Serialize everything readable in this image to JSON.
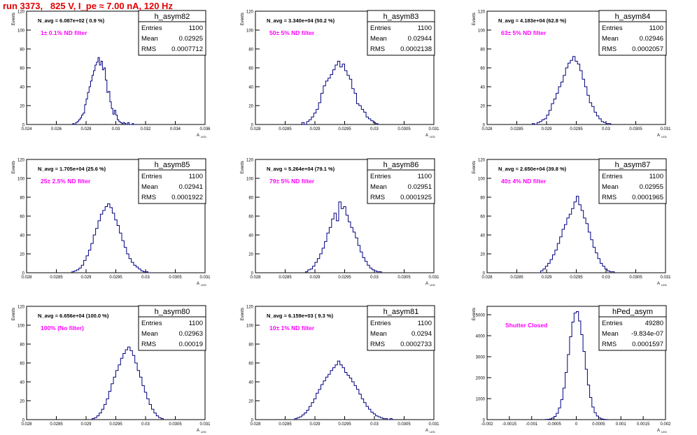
{
  "title": "run 3373,   825 V, I_pe ≈ 7.00 nA, 120 Hz",
  "axis_labels": {
    "y": "Events",
    "x": "A",
    "x_sub": "LED"
  },
  "stats_labels": {
    "entries": "Entries",
    "mean": "Mean",
    "rms": "RMS"
  },
  "colors": {
    "hist": "#000080",
    "note": "#ff00ff",
    "title": "#e00000"
  },
  "chart_data": [
    {
      "type": "histogram",
      "name": "h_asym82",
      "n_avg": "N_avg = 6.087e+02 ( 0.9 %)",
      "note": "1± 0.1% ND filter",
      "entries": "1100",
      "mean": "0.02925",
      "rms": "0.0007712",
      "xlim": [
        0.024,
        0.036
      ],
      "ylim": [
        0,
        120
      ],
      "xticks": [
        "0.024",
        "0.026",
        "0.028",
        "0.03",
        "0.032",
        "0.034",
        "0.036"
      ],
      "yticks": [
        "0",
        "20",
        "40",
        "60",
        "80",
        "100",
        "120"
      ],
      "edges": [
        0.0271,
        0.0272,
        0.0273,
        0.0274,
        0.0275,
        0.0276,
        0.0277,
        0.0278,
        0.0279,
        0.028,
        0.0281,
        0.0282,
        0.0283,
        0.0284,
        0.0285,
        0.0286,
        0.0287,
        0.0288,
        0.0289,
        0.029,
        0.0291,
        0.0292,
        0.0293,
        0.0294,
        0.0295,
        0.0296,
        0.0297,
        0.0298,
        0.0299,
        0.03,
        0.0301,
        0.0302,
        0.0303,
        0.0304,
        0.0305,
        0.0306,
        0.0307,
        0.0308,
        0.0309,
        0.031,
        0.0311,
        0.0312,
        0.0313
      ],
      "counts": [
        1,
        0,
        2,
        3,
        5,
        7,
        10,
        12,
        21,
        27,
        34,
        40,
        46,
        52,
        57,
        63,
        66,
        71,
        63,
        67,
        58,
        60,
        47,
        34,
        35,
        24,
        17,
        11,
        15,
        10,
        5,
        3,
        2,
        1,
        2,
        1,
        0,
        2,
        0,
        0,
        1,
        0
      ]
    },
    {
      "type": "histogram",
      "name": "h_asym83",
      "n_avg": "N_avg = 3.340e+04 (50.2 %)",
      "note": "50± 5% ND filter",
      "entries": "1100",
      "mean": "0.02944",
      "rms": "0.0002138",
      "xlim": [
        0.028,
        0.031
      ],
      "ylim": [
        0,
        120
      ],
      "xticks": [
        "0.028",
        "0.0285",
        "0.029",
        "0.0295",
        "0.03",
        "0.0305",
        "0.031"
      ],
      "yticks": [
        "0",
        "20",
        "40",
        "60",
        "80",
        "100",
        "120"
      ],
      "edges": [
        0.02878,
        0.02882,
        0.02886,
        0.0289,
        0.02894,
        0.02898,
        0.02902,
        0.02906,
        0.0291,
        0.02914,
        0.02918,
        0.02922,
        0.02926,
        0.0293,
        0.02934,
        0.02938,
        0.02942,
        0.02946,
        0.0295,
        0.02954,
        0.02958,
        0.02962,
        0.02966,
        0.0297,
        0.02974,
        0.02978,
        0.02982,
        0.02986,
        0.0299,
        0.02994,
        0.02998,
        0.03002,
        0.03006
      ],
      "counts": [
        2,
        0,
        3,
        5,
        8,
        12,
        16,
        23,
        33,
        41,
        46,
        49,
        53,
        58,
        63,
        67,
        61,
        64,
        57,
        52,
        48,
        38,
        33,
        22,
        20,
        16,
        13,
        8,
        6,
        4,
        2,
        1
      ]
    },
    {
      "type": "histogram",
      "name": "h_asym84",
      "n_avg": "N_avg = 4.183e+04 (62.8 %)",
      "note": "63± 5% ND filter",
      "entries": "1100",
      "mean": "0.02946",
      "rms": "0.0002057",
      "xlim": [
        0.028,
        0.031
      ],
      "ylim": [
        0,
        120
      ],
      "xticks": [
        "0.028",
        "0.0285",
        "0.029",
        "0.0295",
        "0.03",
        "0.0305",
        "0.031"
      ],
      "yticks": [
        "0",
        "20",
        "40",
        "60",
        "80",
        "100",
        "120"
      ],
      "edges": [
        0.02876,
        0.0288,
        0.02884,
        0.02888,
        0.02892,
        0.02896,
        0.029,
        0.02904,
        0.02908,
        0.02912,
        0.02916,
        0.0292,
        0.02924,
        0.02928,
        0.02932,
        0.02936,
        0.0294,
        0.02944,
        0.02948,
        0.02952,
        0.02956,
        0.0296,
        0.02964,
        0.02968,
        0.02972,
        0.02976,
        0.0298,
        0.02984,
        0.02988,
        0.02992,
        0.02996,
        0.03,
        0.03004,
        0.03008
      ],
      "counts": [
        1,
        0,
        2,
        3,
        5,
        6,
        10,
        15,
        22,
        27,
        33,
        40,
        45,
        52,
        60,
        65,
        68,
        72,
        67,
        64,
        57,
        48,
        40,
        31,
        23,
        19,
        13,
        9,
        6,
        3,
        2,
        1,
        1
      ]
    },
    {
      "type": "histogram",
      "name": "h_asym85",
      "n_avg": "N_avg = 1.705e+04 (25.6 %)",
      "note": "25± 2.5% ND filter",
      "entries": "1100",
      "mean": "0.02941",
      "rms": "0.0001922",
      "xlim": [
        0.028,
        0.031
      ],
      "ylim": [
        0,
        120
      ],
      "xticks": [
        "0.028",
        "0.0285",
        "0.029",
        "0.0295",
        "0.03",
        "0.0305",
        "0.031"
      ],
      "yticks": [
        "0",
        "20",
        "40",
        "60",
        "80",
        "100",
        "120"
      ],
      "edges": [
        0.02876,
        0.0288,
        0.02884,
        0.02888,
        0.02892,
        0.02896,
        0.029,
        0.02904,
        0.02908,
        0.02912,
        0.02916,
        0.0292,
        0.02924,
        0.02928,
        0.02932,
        0.02936,
        0.0294,
        0.02944,
        0.02948,
        0.02952,
        0.02956,
        0.0296,
        0.02964,
        0.02968,
        0.02972,
        0.02976,
        0.0298,
        0.02984,
        0.02988,
        0.02992,
        0.02996,
        0.03,
        0.03004,
        0.03008
      ],
      "counts": [
        1,
        2,
        3,
        5,
        8,
        13,
        18,
        24,
        31,
        40,
        47,
        55,
        62,
        66,
        70,
        73,
        69,
        63,
        56,
        50,
        42,
        34,
        27,
        20,
        15,
        11,
        8,
        6,
        4,
        2,
        1,
        1,
        0
      ]
    },
    {
      "type": "histogram",
      "name": "h_asym86",
      "n_avg": "N_avg = 5.264e+04 (79.1 %)",
      "note": "79± 5% ND filter",
      "entries": "1100",
      "mean": "0.02951",
      "rms": "0.0001925",
      "xlim": [
        0.028,
        0.031
      ],
      "ylim": [
        0,
        120
      ],
      "xticks": [
        "0.028",
        "0.0285",
        "0.029",
        "0.0295",
        "0.03",
        "0.0305",
        "0.031"
      ],
      "yticks": [
        "0",
        "20",
        "40",
        "60",
        "80",
        "100",
        "120"
      ],
      "edges": [
        0.02884,
        0.02888,
        0.02892,
        0.02896,
        0.029,
        0.02904,
        0.02908,
        0.02912,
        0.02916,
        0.0292,
        0.02924,
        0.02928,
        0.02932,
        0.02936,
        0.0294,
        0.02944,
        0.02948,
        0.02952,
        0.02956,
        0.0296,
        0.02964,
        0.02968,
        0.02972,
        0.02976,
        0.0298,
        0.02984,
        0.02988,
        0.02992,
        0.02996,
        0.03,
        0.03004,
        0.03008,
        0.03012
      ],
      "counts": [
        1,
        3,
        4,
        7,
        11,
        15,
        20,
        26,
        33,
        42,
        48,
        57,
        63,
        55,
        75,
        68,
        70,
        61,
        54,
        48,
        43,
        37,
        29,
        22,
        16,
        12,
        8,
        5,
        3,
        2,
        1,
        1
      ]
    },
    {
      "type": "histogram",
      "name": "h_asym87",
      "n_avg": "N_avg = 2.650e+04 (39.8 %)",
      "note": "40± 4% ND filter",
      "entries": "1100",
      "mean": "0.02955",
      "rms": "0.0001965",
      "xlim": [
        0.028,
        0.031
      ],
      "ylim": [
        0,
        120
      ],
      "xticks": [
        "0.028",
        "0.0285",
        "0.029",
        "0.0295",
        "0.03",
        "0.0305",
        "0.031"
      ],
      "yticks": [
        "0",
        "20",
        "40",
        "60",
        "80",
        "100",
        "120"
      ],
      "edges": [
        0.0289,
        0.02894,
        0.02898,
        0.02902,
        0.02906,
        0.0291,
        0.02914,
        0.02918,
        0.02922,
        0.02926,
        0.0293,
        0.02934,
        0.02938,
        0.02942,
        0.02946,
        0.0295,
        0.02954,
        0.02958,
        0.02962,
        0.02966,
        0.0297,
        0.02974,
        0.02978,
        0.02982,
        0.02986,
        0.0299,
        0.02994,
        0.02998,
        0.03002,
        0.03006,
        0.0301,
        0.03014
      ],
      "counts": [
        2,
        4,
        7,
        10,
        14,
        19,
        24,
        31,
        38,
        46,
        51,
        58,
        62,
        68,
        75,
        81,
        72,
        66,
        58,
        52,
        43,
        35,
        27,
        21,
        15,
        10,
        7,
        4,
        2,
        1,
        1
      ]
    },
    {
      "type": "histogram",
      "name": "h_asym80",
      "n_avg": "N_avg = 6.656e+04 (100.0 %)",
      "note": "100% (No filter)",
      "entries": "1100",
      "mean": "0.02963",
      "rms": "0.00019",
      "xlim": [
        0.028,
        0.031
      ],
      "ylim": [
        0,
        120
      ],
      "xticks": [
        "0.028",
        "0.0285",
        "0.029",
        "0.0295",
        "0.03",
        "0.0305",
        "0.031"
      ],
      "yticks": [
        "0",
        "20",
        "40",
        "60",
        "80",
        "100",
        "120"
      ],
      "edges": [
        0.0291,
        0.02914,
        0.02918,
        0.02922,
        0.02926,
        0.0293,
        0.02934,
        0.02938,
        0.02942,
        0.02946,
        0.0295,
        0.02954,
        0.02958,
        0.02962,
        0.02966,
        0.0297,
        0.02974,
        0.02978,
        0.02982,
        0.02986,
        0.0299,
        0.02994,
        0.02998,
        0.03002,
        0.03006,
        0.0301,
        0.03014,
        0.03018,
        0.03022,
        0.03026,
        0.0303
      ],
      "counts": [
        1,
        2,
        4,
        7,
        11,
        16,
        22,
        30,
        38,
        45,
        52,
        58,
        65,
        70,
        74,
        77,
        73,
        68,
        60,
        52,
        45,
        36,
        29,
        22,
        16,
        11,
        7,
        4,
        2,
        1
      ]
    },
    {
      "type": "histogram",
      "name": "h_asym81",
      "n_avg": "N_avg = 6.159e+03 ( 9.3 %)",
      "note": "10± 1% ND filter",
      "entries": "1100",
      "mean": "0.0294",
      "rms": "0.0002733",
      "xlim": [
        0.028,
        0.031
      ],
      "ylim": [
        0,
        120
      ],
      "xticks": [
        "0.028",
        "0.0285",
        "0.029",
        "0.0295",
        "0.03",
        "0.0305",
        "0.031"
      ],
      "yticks": [
        "0",
        "20",
        "40",
        "60",
        "80",
        "100",
        "120"
      ],
      "edges": [
        0.02866,
        0.0287,
        0.02874,
        0.02878,
        0.02882,
        0.02886,
        0.0289,
        0.02894,
        0.02898,
        0.02902,
        0.02906,
        0.0291,
        0.02914,
        0.02918,
        0.02922,
        0.02926,
        0.0293,
        0.02934,
        0.02938,
        0.02942,
        0.02946,
        0.0295,
        0.02954,
        0.02958,
        0.02962,
        0.02966,
        0.0297,
        0.02974,
        0.02978,
        0.02982,
        0.02986,
        0.0299,
        0.02994,
        0.02998,
        0.03002,
        0.03006,
        0.0301,
        0.03014,
        0.03018,
        0.03022,
        0.03026,
        0.0303
      ],
      "counts": [
        1,
        2,
        3,
        5,
        7,
        10,
        14,
        18,
        22,
        28,
        32,
        37,
        41,
        45,
        48,
        52,
        55,
        58,
        62,
        58,
        55,
        50,
        47,
        44,
        40,
        36,
        32,
        27,
        22,
        18,
        14,
        11,
        8,
        6,
        4,
        3,
        2,
        1,
        1,
        0,
        1
      ]
    },
    {
      "type": "histogram",
      "name": "hPed_asym",
      "n_avg": "",
      "note": "Shutter Closed",
      "entries": "49280",
      "mean": "-9.834e-07",
      "rms": "0.0001597",
      "xlim": [
        -0.002,
        0.002
      ],
      "ylim": [
        0,
        5400
      ],
      "xticks": [
        "-0.002",
        "-0.0015",
        "-0.001",
        "-0.0005",
        "0",
        "0.0005",
        "0.001",
        "0.0015",
        "0.002"
      ],
      "yticks": [
        "0",
        "1000",
        "2000",
        "3000",
        "4000",
        "5000"
      ],
      "edges": [
        -0.0007,
        -0.00065,
        -0.0006,
        -0.00055,
        -0.0005,
        -0.00045,
        -0.0004,
        -0.00035,
        -0.0003,
        -0.00025,
        -0.0002,
        -0.00015,
        -0.0001,
        -5e-05,
        0,
        5e-05,
        0.0001,
        0.00015,
        0.0002,
        0.00025,
        0.0003,
        0.00035,
        0.0004,
        0.00045,
        0.0005,
        0.00055,
        0.0006,
        0.00065,
        0.0007
      ],
      "counts": [
        8,
        15,
        35,
        75,
        150,
        300,
        560,
        950,
        1500,
        2250,
        3100,
        3950,
        4650,
        5080,
        5150,
        4700,
        4050,
        3250,
        2400,
        1650,
        1050,
        600,
        330,
        170,
        80,
        35,
        15,
        6
      ]
    }
  ]
}
